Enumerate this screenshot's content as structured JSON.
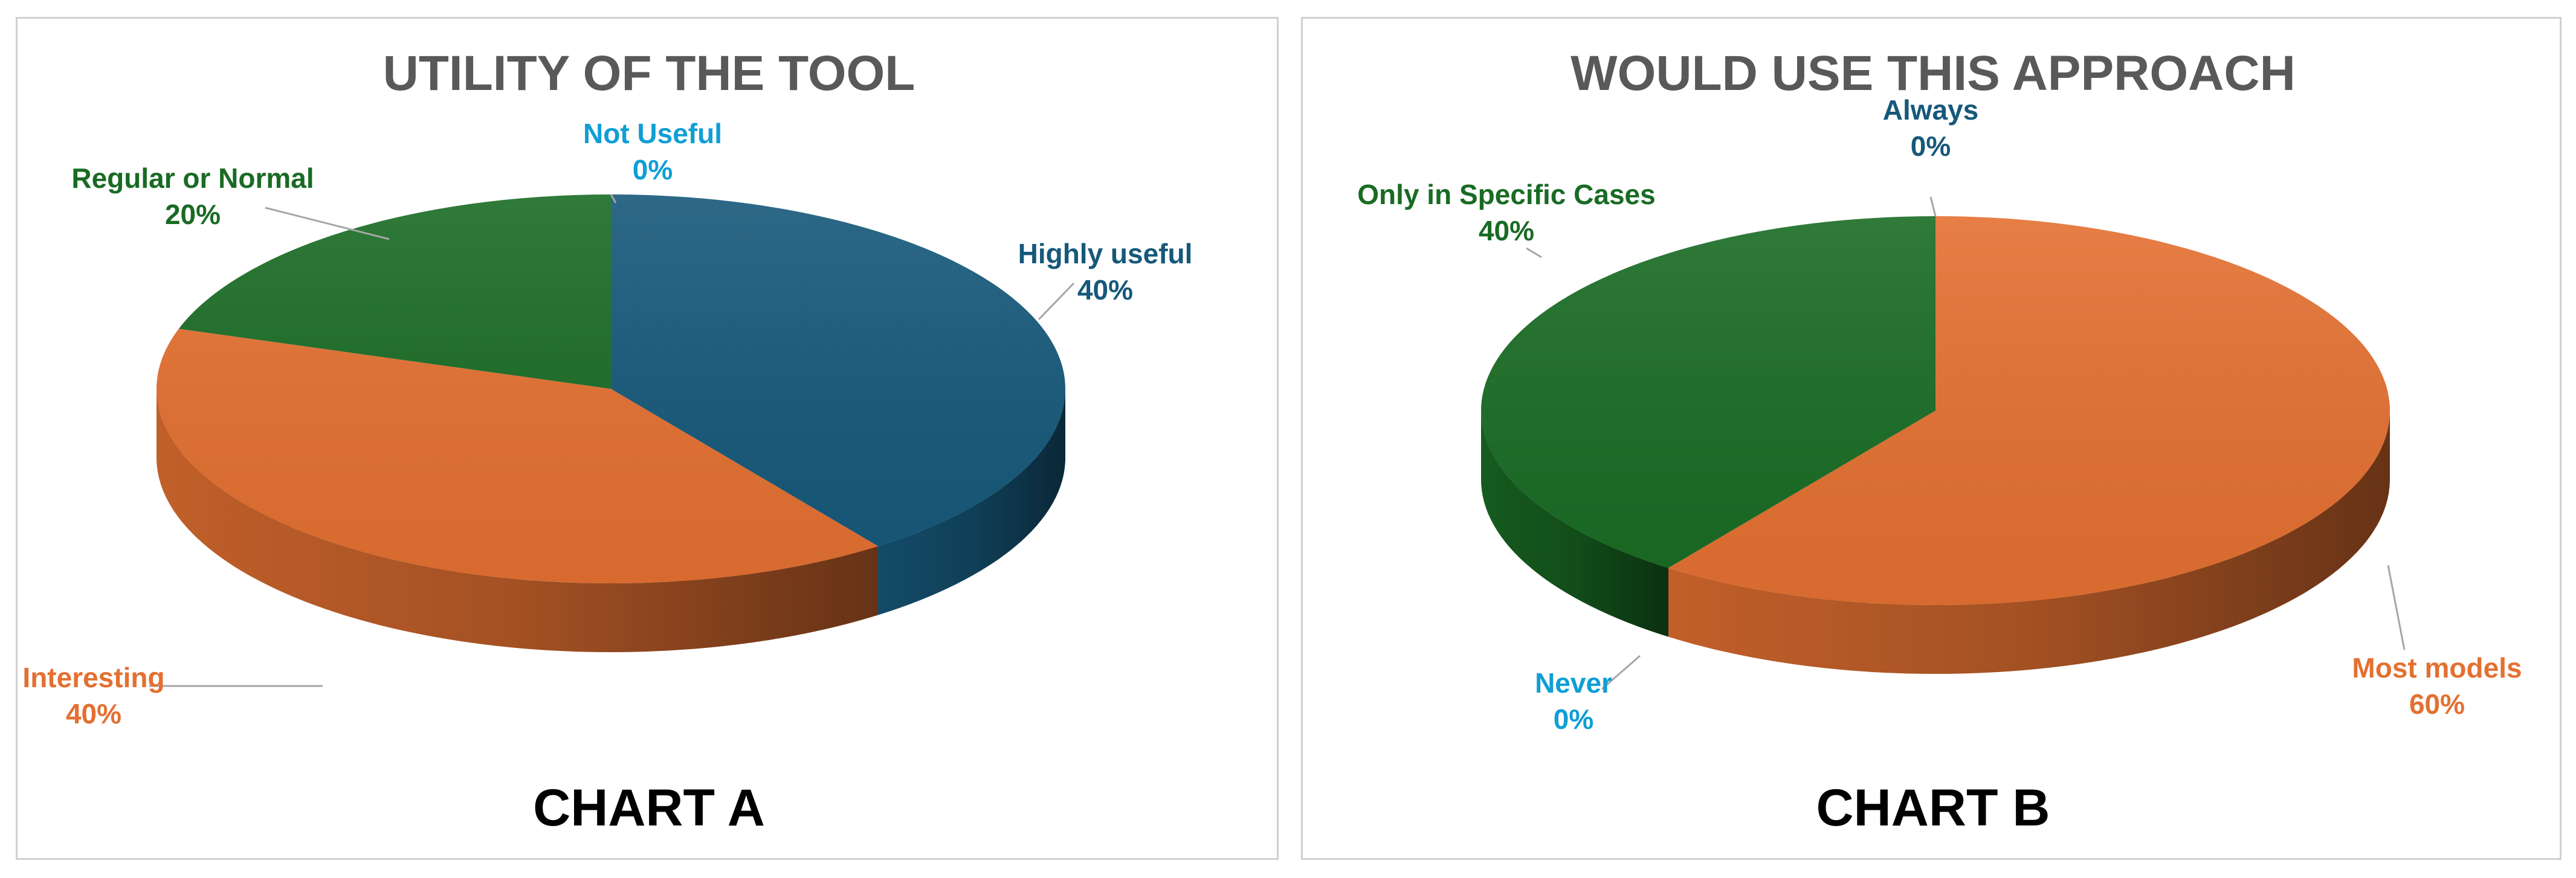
{
  "charts": [
    {
      "caption": "CHART A",
      "chart_data": {
        "type": "pie",
        "title": "UTILITY OF THE TOOL",
        "categories": [
          "Highly useful",
          "Interesting",
          "Regular or Normal",
          "Not Useful"
        ],
        "values": [
          40,
          40,
          20,
          0
        ],
        "labels": [
          "40%",
          "40%",
          "20%",
          "0%"
        ],
        "colors": [
          "#16587a",
          "#e37031",
          "#196b24",
          "#0f9ed5"
        ],
        "label_colors": [
          "#16587a",
          "#e37031",
          "#196b24",
          "#0f9ed5"
        ],
        "style": "3d"
      }
    },
    {
      "caption": "CHART B",
      "chart_data": {
        "type": "pie",
        "title": "WOULD USE THIS APPROACH",
        "categories": [
          "Most models",
          "Never",
          "Only in Specific Cases",
          "Always"
        ],
        "values": [
          60,
          0,
          40,
          0
        ],
        "labels": [
          "60%",
          "0%",
          "40%",
          "0%"
        ],
        "colors": [
          "#e37031",
          "#0f9ed5",
          "#196b24",
          "#16587a"
        ],
        "label_colors": [
          "#e37031",
          "#0f9ed5",
          "#196b24",
          "#16587a"
        ],
        "style": "3d"
      }
    }
  ]
}
